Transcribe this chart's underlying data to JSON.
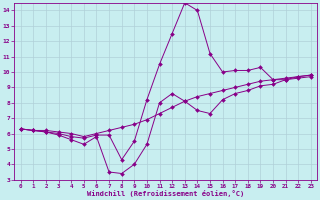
{
  "xlabel": "Windchill (Refroidissement éolien,°C)",
  "xlim": [
    -0.5,
    23.5
  ],
  "ylim": [
    3,
    14.5
  ],
  "xticks": [
    0,
    1,
    2,
    3,
    4,
    5,
    6,
    7,
    8,
    9,
    10,
    11,
    12,
    13,
    14,
    15,
    16,
    17,
    18,
    19,
    20,
    21,
    22,
    23
  ],
  "yticks": [
    3,
    4,
    5,
    6,
    7,
    8,
    9,
    10,
    11,
    12,
    13,
    14
  ],
  "background_color": "#c8eef0",
  "line_color": "#880088",
  "grid_color": "#b0d0d8",
  "line1_x": [
    0,
    1,
    2,
    3,
    4,
    5,
    6,
    7,
    8,
    9,
    10,
    11,
    12,
    13,
    14,
    15,
    16,
    17,
    18,
    19,
    20,
    21,
    22,
    23
  ],
  "line1_y": [
    6.3,
    6.2,
    6.1,
    6.0,
    5.8,
    5.7,
    5.9,
    5.9,
    4.3,
    5.5,
    8.2,
    10.5,
    12.5,
    14.5,
    14.0,
    11.2,
    10.0,
    10.1,
    10.1,
    10.3,
    9.5,
    9.5,
    9.7,
    9.8
  ],
  "line2_x": [
    0,
    1,
    2,
    3,
    4,
    5,
    6,
    7,
    8,
    9,
    10,
    11,
    12,
    13,
    14,
    15,
    16,
    17,
    18,
    19,
    20,
    21,
    22,
    23
  ],
  "line2_y": [
    6.3,
    6.2,
    6.1,
    5.9,
    5.6,
    5.3,
    5.8,
    3.5,
    3.4,
    4.0,
    5.3,
    8.0,
    8.6,
    8.1,
    7.5,
    7.3,
    8.2,
    8.6,
    8.8,
    9.1,
    9.2,
    9.5,
    9.6,
    9.7
  ],
  "line3_x": [
    0,
    1,
    2,
    3,
    4,
    5,
    6,
    7,
    8,
    9,
    10,
    11,
    12,
    13,
    14,
    15,
    16,
    17,
    18,
    19,
    20,
    21,
    22,
    23
  ],
  "line3_y": [
    6.3,
    6.2,
    6.2,
    6.1,
    6.0,
    5.8,
    6.0,
    6.2,
    6.4,
    6.6,
    6.9,
    7.3,
    7.7,
    8.1,
    8.4,
    8.6,
    8.8,
    9.0,
    9.2,
    9.4,
    9.5,
    9.6,
    9.7,
    9.8
  ]
}
